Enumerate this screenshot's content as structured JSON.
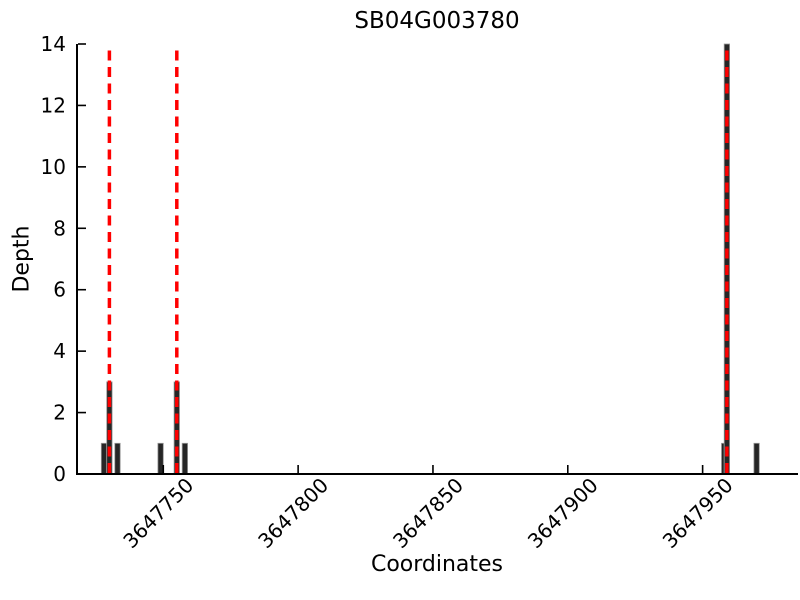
{
  "figure": {
    "title": "SB04G003780",
    "xlabel": "Coordinates",
    "ylabel": "Depth"
  },
  "chart_data": {
    "type": "bar",
    "title": "SB04G003780",
    "xlabel": "Coordinates",
    "ylabel": "Depth",
    "xlim": [
      3647718,
      3647985
    ],
    "ylim": [
      0,
      14
    ],
    "xticks": [
      3647750,
      3647800,
      3647850,
      3647900,
      3647950
    ],
    "xtick_labels": [
      "3647750",
      "3647800",
      "3647850",
      "3647900",
      "3647950"
    ],
    "yticks": [
      0,
      2,
      4,
      6,
      8,
      10,
      12,
      14
    ],
    "ytick_labels": [
      "0",
      "2",
      "4",
      "6",
      "8",
      "10",
      "12",
      "14"
    ],
    "x_tick_rotation": 45,
    "grid": false,
    "legend": null,
    "bars": [
      {
        "start": 3647727,
        "end": 3647729,
        "depth": 1
      },
      {
        "start": 3647729,
        "end": 3647731,
        "depth": 3
      },
      {
        "start": 3647732,
        "end": 3647734,
        "depth": 1
      },
      {
        "start": 3647748,
        "end": 3647750,
        "depth": 1
      },
      {
        "start": 3647754,
        "end": 3647756,
        "depth": 3
      },
      {
        "start": 3647757,
        "end": 3647759,
        "depth": 1
      },
      {
        "start": 3647957,
        "end": 3647958,
        "depth": 1
      },
      {
        "start": 3647958,
        "end": 3647960,
        "depth": 14
      },
      {
        "start": 3647969,
        "end": 3647971,
        "depth": 1
      }
    ],
    "vlines": {
      "x": [
        3647730,
        3647755,
        3647959
      ],
      "ymin": 0,
      "ymax": 13.8,
      "style": "dashed"
    },
    "colors": {
      "bar_fill": "#262626",
      "bar_edge": "#999999",
      "vline": "#ff0000",
      "axis": "#000000",
      "text": "#000000",
      "background": "#ffffff"
    }
  }
}
